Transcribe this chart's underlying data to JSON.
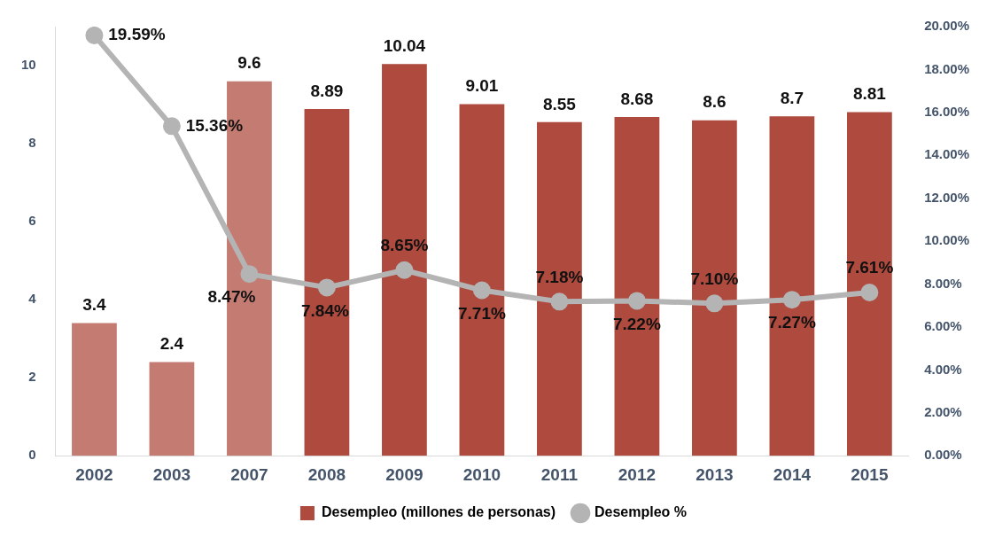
{
  "chart_data": {
    "type": "bar",
    "categories": [
      "2002",
      "2003",
      "2007",
      "2008",
      "2009",
      "2010",
      "2011",
      "2012",
      "2013",
      "2014",
      "2015"
    ],
    "series": [
      {
        "name": "Desempleo (millones de personas)",
        "colors": [
          "#c47b72",
          "#c47b72",
          "#c47b72",
          "#ae4a3e",
          "#ae4a3e",
          "#ae4a3e",
          "#ae4a3e",
          "#ae4a3e",
          "#ae4a3e",
          "#ae4a3e",
          "#ae4a3e"
        ],
        "color": "#ae4a3e",
        "values": [
          3.4,
          2.4,
          9.6,
          8.89,
          10.04,
          9.01,
          8.55,
          8.68,
          8.6,
          8.7,
          8.81
        ],
        "value_labels": [
          "3.4",
          "2.4",
          "9.6",
          "8.89",
          "10.04",
          "9.01",
          "8.55",
          "8.68",
          "8.6",
          "8.7",
          "8.81"
        ]
      },
      {
        "name": "Desempleo %",
        "type": "line",
        "axis": "y2",
        "color": "#b4b4b4",
        "values": [
          19.59,
          15.36,
          8.47,
          7.84,
          8.65,
          7.71,
          7.18,
          7.22,
          7.1,
          7.27,
          7.61
        ],
        "value_labels": [
          "19.59%",
          "15.36%",
          "8.47%",
          "7.84%",
          "8.65%",
          "7.71%",
          "7.18%",
          "7.22%",
          "7.10%",
          "7.27%",
          "7.61%"
        ]
      }
    ],
    "ylim": [
      0,
      11
    ],
    "yticks": [
      0,
      2,
      4,
      6,
      8,
      10
    ],
    "y2lim": [
      0,
      20
    ],
    "y2ticks": [
      {
        "value": 0,
        "label": "0.00%"
      },
      {
        "value": 2,
        "label": "2.00%"
      },
      {
        "value": 4,
        "label": "4.00%"
      },
      {
        "value": 6,
        "label": "6.00%"
      },
      {
        "value": 8,
        "label": "8.00%"
      },
      {
        "value": 10,
        "label": "10.00%"
      },
      {
        "value": 12,
        "label": "12.00%"
      },
      {
        "value": 14,
        "label": "14.00%"
      },
      {
        "value": 16,
        "label": "16.00%"
      },
      {
        "value": 18,
        "label": "18.00%"
      },
      {
        "value": 20,
        "label": "20.00%"
      }
    ],
    "grid": false,
    "legend": "bottom",
    "marker": "circle",
    "line_style": "solid"
  }
}
